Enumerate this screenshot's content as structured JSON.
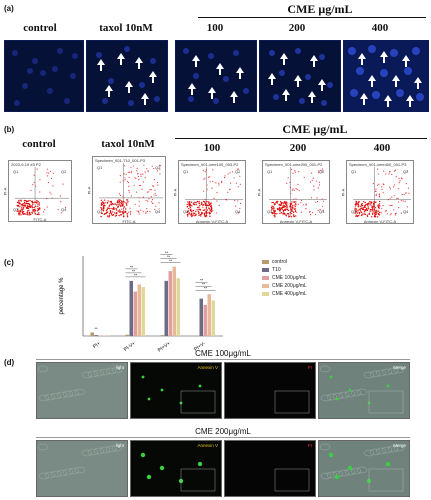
{
  "panel_a": {
    "letter": "(a)",
    "headers": [
      "control",
      "taxol 10nM",
      "100",
      "200",
      "400"
    ],
    "cme_label": "CME μg/mL"
  },
  "panel_b": {
    "letter": "(b)",
    "headers": [
      "control",
      "taxol 10nM",
      "100",
      "200",
      "400"
    ],
    "cme_label": "CME μg/mL",
    "plot_titles": [
      "2023-9-19 #3 P2",
      "Specimen_001-T10_001-P3",
      "Specimen_001-cme100_003-P2",
      "Specimen_001-cme200_001-P2",
      "Specimen_001-cme400_001-P3"
    ],
    "quadrants": [
      "Q1",
      "Q2",
      "Q3",
      "Q4"
    ],
    "xlabels": [
      "FITC-A",
      "FITC-A",
      "Annexin V-FITC-A",
      "Annexin V-FITC-A",
      "Annexin V-FITC-A"
    ],
    "ylabel": "PI-A"
  },
  "panel_c": {
    "letter": "(c)",
    "chart_data": {
      "type": "bar",
      "ylabel": "percentage %",
      "categories": [
        "PI+",
        "PI-V+",
        "PI+V+",
        "PI+V-"
      ],
      "series": [
        {
          "name": "control",
          "color": "#b89a6e",
          "values": [
            4,
            1.5,
            1,
            0.5
          ]
        },
        {
          "name": "T10",
          "color": "#6b6b85",
          "values": [
            1,
            62,
            62,
            42
          ]
        },
        {
          "name": "CME 100μg/mL",
          "color": "#e0a0a0",
          "values": [
            0.5,
            50,
            73,
            35
          ]
        },
        {
          "name": "CME 200μg/mL",
          "color": "#e8b89a",
          "values": [
            0.5,
            58,
            78,
            47
          ]
        },
        {
          "name": "CME 400μg/mL",
          "color": "#e0d89a",
          "values": [
            0.3,
            55,
            65,
            40
          ]
        }
      ],
      "sig_label": "**"
    }
  },
  "panel_d": {
    "letter": "(d)",
    "sections": [
      {
        "title": "CME 100μg/mL",
        "tiles": [
          "light",
          "Annexin V",
          "PI",
          "Merge"
        ]
      },
      {
        "title": "CME 200μg/mL",
        "tiles": [
          "light",
          "Annexin V",
          "PI",
          "Merge"
        ]
      }
    ],
    "label_colors": {
      "light": "#ffffff",
      "annexin": "#e8c020",
      "pi": "#e03030",
      "merge": "#ffffff"
    }
  }
}
